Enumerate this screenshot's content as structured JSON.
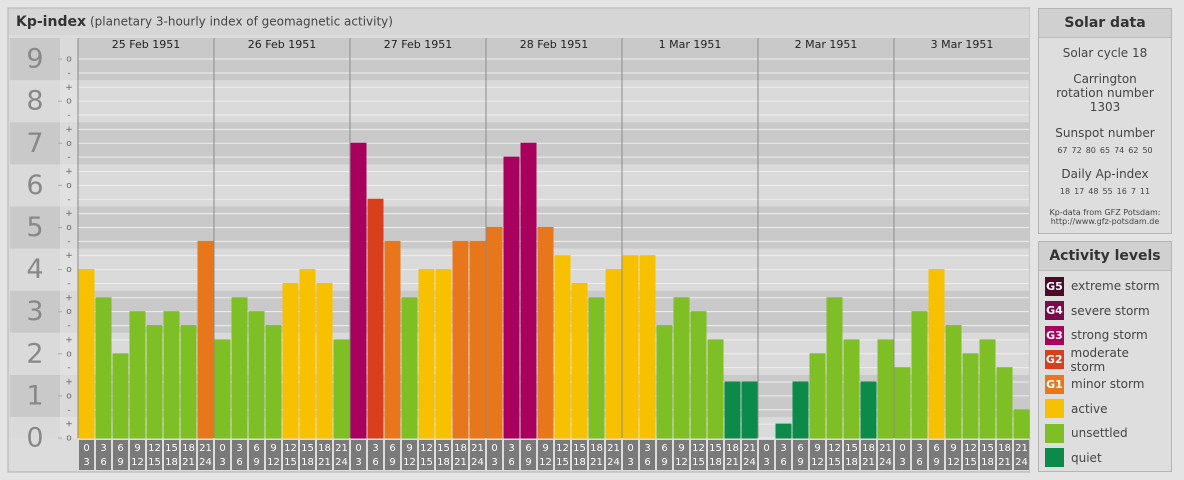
{
  "chart_data": {
    "type": "bar",
    "title": "Kp-index",
    "subtitle": "(planetary 3-hourly index of geomagnetic activity)",
    "days": [
      "25 Feb 1951",
      "26 Feb 1951",
      "27 Feb 1951",
      "28 Feb 1951",
      "1 Mar 1951",
      "2 Mar 1951",
      "3 Mar 1951"
    ],
    "hour_start": [
      0,
      3,
      6,
      9,
      12,
      15,
      18,
      21
    ],
    "hour_end": [
      3,
      6,
      9,
      12,
      15,
      18,
      21,
      24
    ],
    "values": [
      4,
      3.33,
      2,
      3,
      2.67,
      3,
      2.67,
      4.67,
      2.33,
      3.33,
      3,
      2.67,
      3.67,
      4,
      3.67,
      2.33,
      7,
      5.67,
      4.67,
      3.33,
      4,
      4,
      4.67,
      4.67,
      5,
      6.67,
      7,
      5,
      4.33,
      3.67,
      3.33,
      4,
      4.33,
      4.33,
      2.67,
      3.33,
      3,
      2.33,
      1.33,
      1.33,
      0,
      0.33,
      1.33,
      2,
      3.33,
      2.33,
      1.33,
      2.33,
      1.67,
      3,
      4,
      2.67,
      2,
      2.33,
      1.67,
      0.67
    ],
    "colors": [
      "#f7c100",
      "#7dbf24",
      "#7dbf24",
      "#7dbf24",
      "#7dbf24",
      "#7dbf24",
      "#7dbf24",
      "#e8771c",
      "#7dbf24",
      "#7dbf24",
      "#7dbf24",
      "#7dbf24",
      "#f7c100",
      "#f7c100",
      "#f7c100",
      "#7dbf24",
      "#a8005c",
      "#d8401c",
      "#e8771c",
      "#7dbf24",
      "#f7c100",
      "#f7c100",
      "#e8771c",
      "#e8771c",
      "#e8771c",
      "#a8005c",
      "#a8005c",
      "#e8771c",
      "#f7c100",
      "#f7c100",
      "#7dbf24",
      "#f7c100",
      "#f7c100",
      "#f7c100",
      "#7dbf24",
      "#7dbf24",
      "#7dbf24",
      "#7dbf24",
      "#0b8a4a",
      "#0b8a4a",
      "#0b8a4a",
      "#0b8a4a",
      "#0b8a4a",
      "#7dbf24",
      "#7dbf24",
      "#7dbf24",
      "#0b8a4a",
      "#7dbf24",
      "#7dbf24",
      "#7dbf24",
      "#f7c100",
      "#7dbf24",
      "#7dbf24",
      "#7dbf24",
      "#7dbf24",
      "#7dbf24"
    ],
    "ylim": [
      0,
      9.5
    ],
    "yticks": [
      0,
      1,
      2,
      3,
      4,
      5,
      6,
      7,
      8,
      9
    ],
    "minor_ticks": [
      {
        "value": 0,
        "label": "o"
      },
      {
        "value": 0.33,
        "label": "+"
      },
      {
        "value": 0.67,
        "label": "-"
      },
      {
        "value": 1,
        "label": "o"
      },
      {
        "value": 1.33,
        "label": "+"
      },
      {
        "value": 1.67,
        "label": "-"
      },
      {
        "value": 2,
        "label": "o"
      },
      {
        "value": 2.33,
        "label": "+"
      },
      {
        "value": 2.67,
        "label": "-"
      },
      {
        "value": 3,
        "label": "o"
      },
      {
        "value": 3.33,
        "label": "+"
      },
      {
        "value": 3.67,
        "label": "-"
      },
      {
        "value": 4,
        "label": "o"
      },
      {
        "value": 4.33,
        "label": "+"
      },
      {
        "value": 4.67,
        "label": "-"
      },
      {
        "value": 5,
        "label": "o"
      },
      {
        "value": 5.33,
        "label": "+"
      },
      {
        "value": 5.67,
        "label": "-"
      },
      {
        "value": 6,
        "label": "o"
      },
      {
        "value": 6.33,
        "label": "+"
      },
      {
        "value": 6.67,
        "label": "-"
      },
      {
        "value": 7,
        "label": "o"
      },
      {
        "value": 7.33,
        "label": "+"
      },
      {
        "value": 7.67,
        "label": "-"
      },
      {
        "value": 8,
        "label": "o"
      },
      {
        "value": 8.33,
        "label": "+"
      },
      {
        "value": 8.67,
        "label": "-"
      },
      {
        "value": 9,
        "label": "o"
      }
    ],
    "grid": true
  },
  "solar_data": {
    "title": "Solar data",
    "cycle": "Solar cycle 18",
    "carrington": "Carrington rotation number 1303",
    "sunspot_title": "Sunspot number",
    "sunspot": [
      67,
      72,
      80,
      65,
      74,
      62,
      50
    ],
    "ap_title": "Daily Ap-index",
    "ap": [
      18,
      17,
      48,
      55,
      16,
      7,
      11
    ],
    "source": "Kp-data from GFZ Potsdam:",
    "url": "http://www.gfz-potsdam.de"
  },
  "legend": {
    "title": "Activity levels",
    "items": [
      {
        "badge": "G5",
        "name": "extreme storm",
        "color": "#4d0a26"
      },
      {
        "badge": "G4",
        "name": "severe storm",
        "color": "#7b0a4d"
      },
      {
        "badge": "G3",
        "name": "strong storm",
        "color": "#a8005c"
      },
      {
        "badge": "G2",
        "name": "moderate storm",
        "color": "#d8401c"
      },
      {
        "badge": "G1",
        "name": "minor storm",
        "color": "#e8771c"
      },
      {
        "name": "active",
        "color": "#f7c100"
      },
      {
        "name": "unsettled",
        "color": "#7dbf24"
      },
      {
        "name": "quiet",
        "color": "#0b8a4a"
      }
    ]
  }
}
